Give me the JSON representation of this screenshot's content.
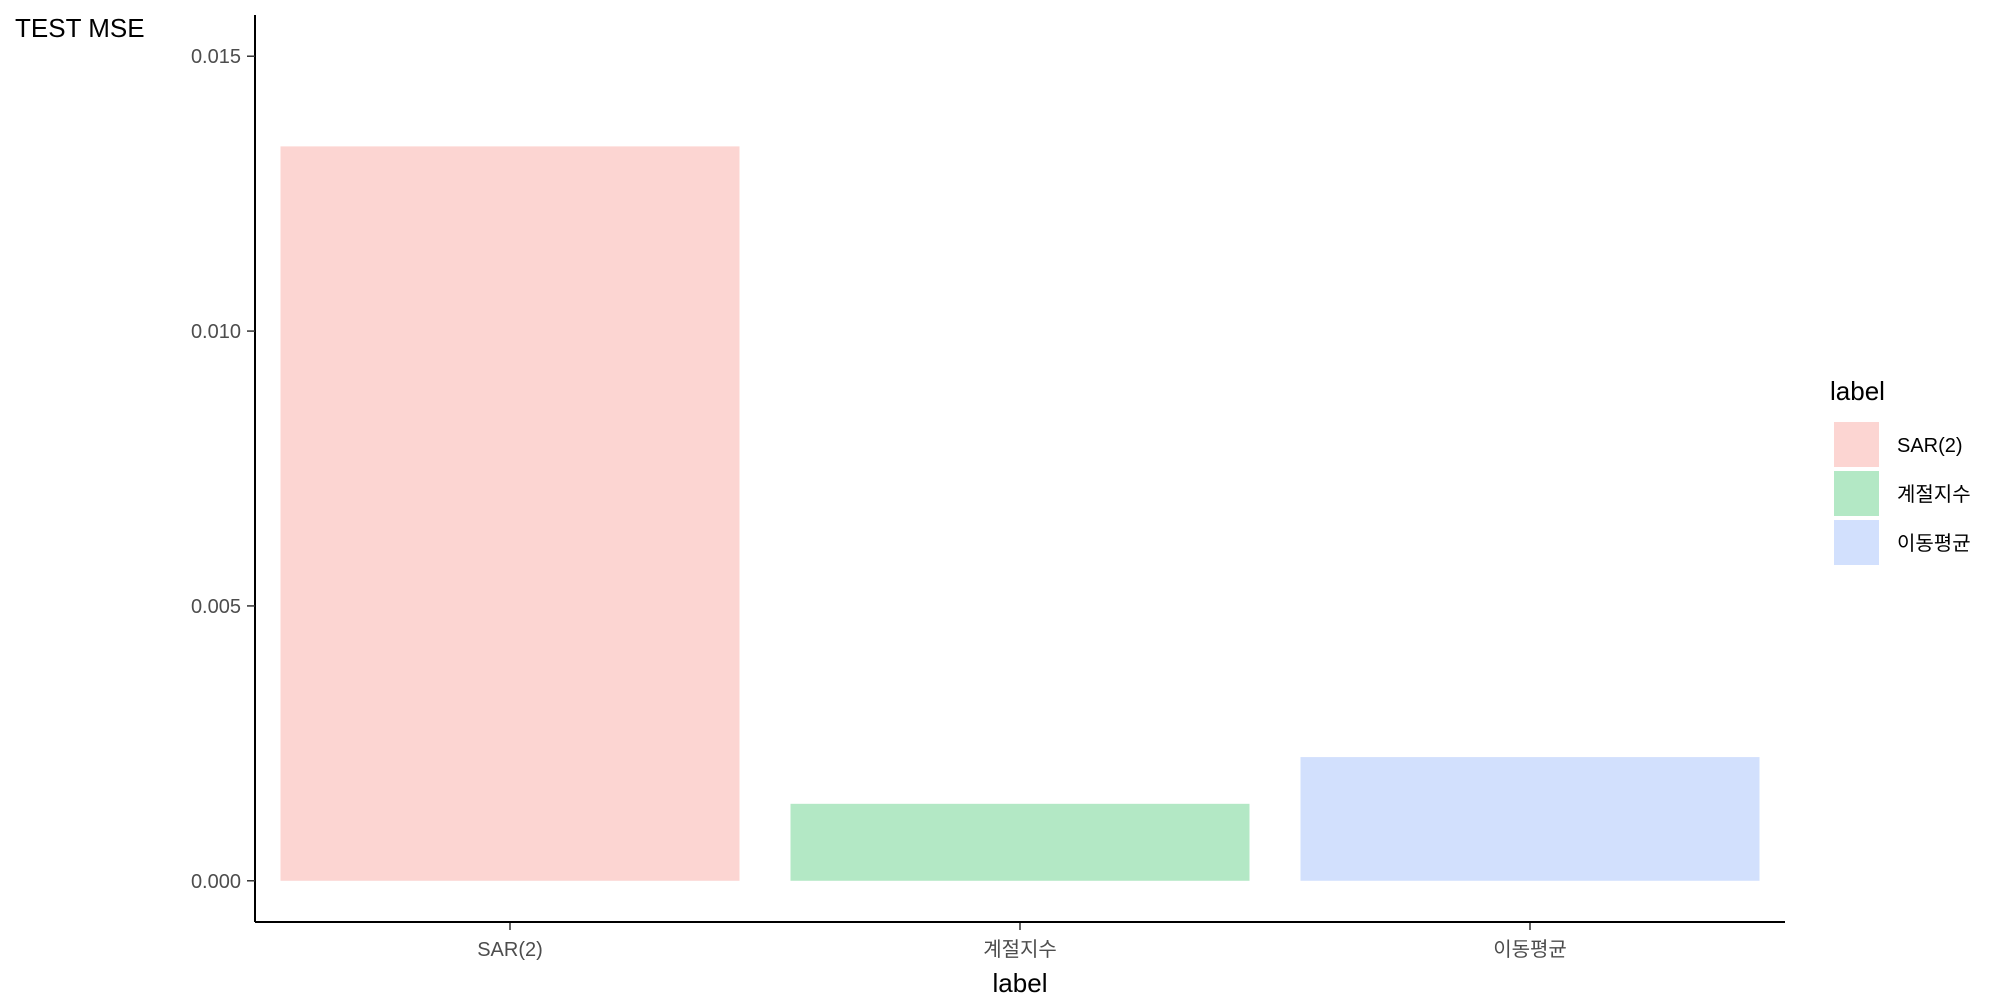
{
  "chart_data": {
    "type": "bar",
    "ylabel": "TEST MSE",
    "xlabel": "label",
    "categories": [
      "SAR(2)",
      "계절지수",
      "이동평균"
    ],
    "values": [
      0.01336,
      0.0014,
      0.00225
    ],
    "ylim": [
      -0.00075,
      0.01575
    ],
    "yticks": [
      0.0,
      0.005,
      0.01,
      0.015
    ],
    "ytick_labels": [
      "0.000",
      "0.005",
      "0.010",
      "0.015"
    ],
    "colors": [
      "#fcd5d2",
      "#b3e8c5",
      "#d2e0fd"
    ],
    "grid": false,
    "legend": {
      "title": "label",
      "placement": "right",
      "entries": [
        "SAR(2)",
        "계절지수",
        "이동평균"
      ]
    }
  }
}
